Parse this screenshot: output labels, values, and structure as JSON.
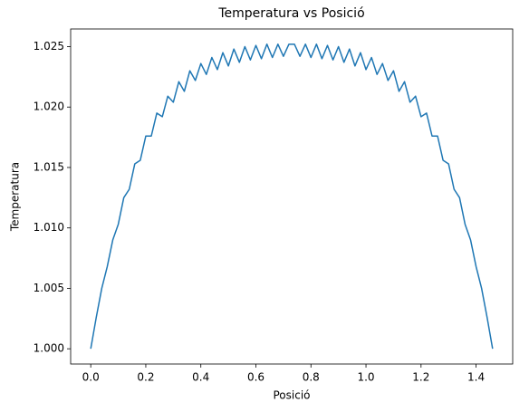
{
  "chart_data": {
    "type": "line",
    "title": "Temperatura vs Posició",
    "x_label": "Posició",
    "y_label": "Temperatura",
    "x": [
      0,
      0.02,
      0.04,
      0.06,
      0.08,
      0.1,
      0.12,
      0.14,
      0.16,
      0.18,
      0.2,
      0.22,
      0.24,
      0.26,
      0.28,
      0.3,
      0.32,
      0.34,
      0.36,
      0.38,
      0.4,
      0.42,
      0.44,
      0.46,
      0.48,
      0.5,
      0.52,
      0.54,
      0.56,
      0.58,
      0.6,
      0.62,
      0.64,
      0.66,
      0.68,
      0.7,
      0.72,
      0.74,
      0.76,
      0.78,
      0.8,
      0.82,
      0.84,
      0.86,
      0.88,
      0.9,
      0.92,
      0.94,
      0.96,
      0.98,
      1.0,
      1.02,
      1.04,
      1.06,
      1.08,
      1.1,
      1.12,
      1.14,
      1.16,
      1.18,
      1.2,
      1.22,
      1.24,
      1.26,
      1.28,
      1.3,
      1.32,
      1.34,
      1.36,
      1.38,
      1.4,
      1.42,
      1.44,
      1.46
    ],
    "series": [
      {
        "name": "Temperatura",
        "color": "#1f77b4",
        "values": [
          1.0,
          1.0026,
          1.005,
          1.0068,
          1.009,
          1.0103,
          1.0125,
          1.0132,
          1.0153,
          1.0156,
          1.0176,
          1.0176,
          1.0195,
          1.0192,
          1.0209,
          1.0204,
          1.0221,
          1.0213,
          1.023,
          1.0222,
          1.0236,
          1.0227,
          1.0241,
          1.0231,
          1.0245,
          1.0234,
          1.0248,
          1.0237,
          1.025,
          1.0239,
          1.0251,
          1.024,
          1.0252,
          1.0241,
          1.0252,
          1.0242,
          1.0252,
          1.0252,
          1.0242,
          1.0252,
          1.0241,
          1.0252,
          1.024,
          1.0251,
          1.0239,
          1.025,
          1.0237,
          1.0248,
          1.0234,
          1.0245,
          1.0231,
          1.0241,
          1.0227,
          1.0236,
          1.0222,
          1.023,
          1.0213,
          1.0221,
          1.0204,
          1.0209,
          1.0192,
          1.0195,
          1.0176,
          1.0176,
          1.0156,
          1.0153,
          1.0132,
          1.0125,
          1.0103,
          1.009,
          1.0068,
          1.005,
          1.0026,
          1.0
        ]
      }
    ],
    "xlim": [
      -0.073,
      1.533
    ],
    "ylim": [
      0.99874,
      1.02646
    ],
    "xticks": [
      {
        "value": 0,
        "label": "0.0"
      },
      0.2,
      0.4,
      0.6,
      0.8,
      {
        "value": 1,
        "label": "1.0"
      },
      1.2,
      1.4
    ],
    "yticks": [
      {
        "value": 1,
        "label": "1.000"
      },
      {
        "value": 1.005,
        "label": "1.005"
      },
      {
        "value": 1.01,
        "label": "1.010"
      },
      {
        "value": 1.015,
        "label": "1.015"
      },
      {
        "value": 1.02,
        "label": "1.020"
      },
      {
        "value": 1.025,
        "label": "1.025"
      }
    ],
    "grid": false
  }
}
